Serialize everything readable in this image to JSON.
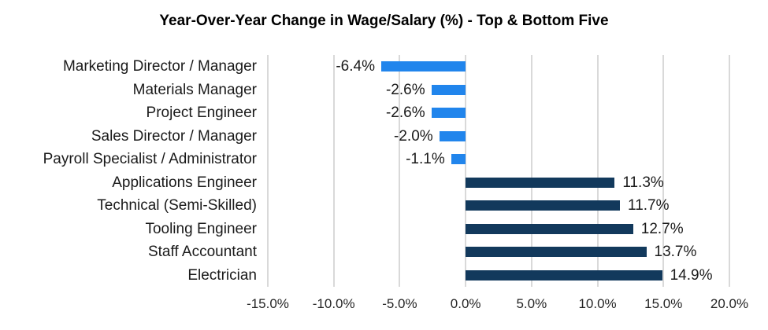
{
  "title": "Year-Over-Year Change in Wage/Salary (%) - Top & Bottom Five",
  "chart_data": {
    "type": "bar",
    "orientation": "horizontal",
    "title": "Year-Over-Year Change in Wage/Salary (%) - Top & Bottom Five",
    "categories": [
      "Marketing Director / Manager",
      "Materials Manager",
      "Project Engineer",
      "Sales Director / Manager",
      "Payroll Specialist / Administrator",
      "Applications Engineer",
      "Technical (Semi-Skilled)",
      "Tooling Engineer",
      "Staff Accountant",
      "Electrician"
    ],
    "values": [
      -6.4,
      -2.6,
      -2.6,
      -2.0,
      -1.1,
      11.3,
      11.7,
      12.7,
      13.7,
      14.9
    ],
    "value_labels": [
      "-6.4%",
      "-2.6%",
      "-2.6%",
      "-2.0%",
      "-1.1%",
      "11.3%",
      "11.7%",
      "12.7%",
      "13.7%",
      "14.9%"
    ],
    "xlabel": "",
    "ylabel": "",
    "xlim": [
      -15,
      20
    ],
    "xtick_values": [
      -15,
      -10,
      -5,
      0,
      5,
      10,
      15,
      20
    ],
    "xtick_labels": [
      "-15.0%",
      "-10.0%",
      "-5.0%",
      "0.0%",
      "5.0%",
      "10.0%",
      "15.0%",
      "20.0%"
    ],
    "grid": true,
    "legend": false,
    "colors": {
      "negative_bar": "#2185EC",
      "positive_bar": "#12395C",
      "gridline": "#d9d9d9",
      "text": "#1a1a1a",
      "title_text": "#000000"
    }
  }
}
